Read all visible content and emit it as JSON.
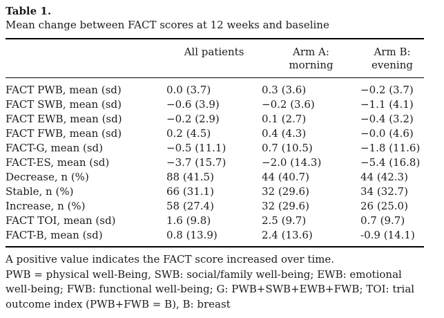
{
  "page": {
    "title_label": "Table 1.",
    "caption": "Mean change between FACT scores at 12 weeks and baseline"
  },
  "table": {
    "columns": [
      {
        "line1": "",
        "line2": ""
      },
      {
        "line1": "All patients",
        "line2": ""
      },
      {
        "line1": "Arm A:",
        "line2": "morning"
      },
      {
        "line1": "Arm B:",
        "line2": "evening"
      }
    ],
    "rows": [
      {
        "label": "FACT PWB, mean (sd)",
        "all_patients": "0.0 (3.7)",
        "arm_a": "0.3 (3.6)",
        "arm_b": "−0.2 (3.7)"
      },
      {
        "label": "FACT SWB, mean (sd)",
        "all_patients": "−0.6 (3.9)",
        "arm_a": "−0.2 (3.6)",
        "arm_b": "−1.1 (4.1)"
      },
      {
        "label": "FACT EWB, mean (sd)",
        "all_patients": "−0.2 (2.9)",
        "arm_a": "0.1 (2.7)",
        "arm_b": "−0.4 (3.2)"
      },
      {
        "label": "FACT FWB, mean (sd)",
        "all_patients": "0.2 (4.5)",
        "arm_a": "0.4 (4.3)",
        "arm_b": "−0.0 (4.6)"
      },
      {
        "label": "FACT-G, mean (sd)",
        "all_patients": "−0.5 (11.1)",
        "arm_a": "0.7 (10.5)",
        "arm_b": "−1.8 (11.6)"
      },
      {
        "label": "FACT-ES, mean (sd)",
        "all_patients": "−3.7 (15.7)",
        "arm_a": "−2.0 (14.3)",
        "arm_b": "−5.4 (16.8)"
      },
      {
        "label": "Decrease, n (%)",
        "all_patients": "88 (41.5)",
        "arm_a": "44 (40.7)",
        "arm_b": "44 (42.3)"
      },
      {
        "label": "Stable, n (%)",
        "all_patients": "66 (31.1)",
        "arm_a": "32 (29.6)",
        "arm_b": "34 (32.7)"
      },
      {
        "label": "Increase, n (%)",
        "all_patients": "58 (27.4)",
        "arm_a": "32 (29.6)",
        "arm_b": "26 (25.0)"
      },
      {
        "label": "FACT TOI, mean (sd)",
        "all_patients": "1.6 (9.8)",
        "arm_a": "2.5 (9.7)",
        "arm_b": "0.7 (9.7)"
      },
      {
        "label": "FACT-B, mean (sd)",
        "all_patients": "0.8 (13.9)",
        "arm_a": "2.4 (13.6)",
        "arm_b": "-0.9 (14.1)"
      }
    ],
    "notes": [
      "A positive value indicates the FACT score increased over time.",
      "PWB = physical well-Being, SWB: social/family well-being; EWB: emotional well-being; FWB: functional well-being; G: PWB+SWB+EWB+FWB; TOI: trial outcome index (PWB+FWB = B), B: breast"
    ]
  },
  "colors": {
    "background": "#ffffff",
    "text": "#1b1b1b",
    "rule": "#000000"
  }
}
